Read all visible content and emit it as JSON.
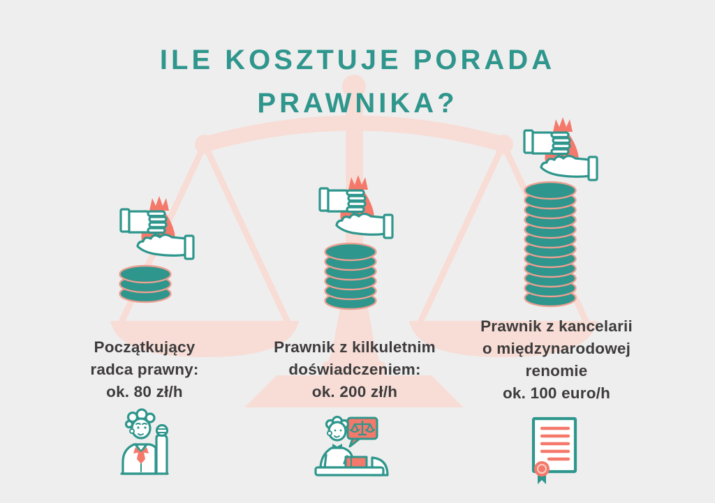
{
  "page": {
    "background": "#EFEEEE"
  },
  "title": {
    "line1": "ILE KOSZTUJE PORADA",
    "line2": "PRAWNIKA?"
  },
  "colors": {
    "teal": "#2E968C",
    "coral": "#F4796B",
    "pink": "#F7DDD6",
    "text": "#3D3B3C",
    "background": "#EFEEEE",
    "coin_edge": "#EBA092"
  },
  "watermark": {
    "name": "scales-of-justice-watermark"
  },
  "icons": {
    "money_dollar": "$",
    "top_icon": "money-exchange-icon",
    "stack_icon": "coin-stack-icon",
    "bottom_icons": [
      "junior-lawyer-icon",
      "lawyer-at-desk-icon",
      "certificate-diploma-icon"
    ]
  },
  "columns": [
    {
      "label_lines": [
        "Początkujący",
        "radca prawny:",
        "ok. 80 zł/h"
      ],
      "price": "ok. 80 zł/h",
      "coins": 3,
      "bottom_icon": "junior-lawyer-icon"
    },
    {
      "label_lines": [
        "Prawnik z kilkuletnim",
        "doświadczeniem:",
        "ok. 200 zł/h"
      ],
      "price": "ok. 200 zł/h",
      "coins": 6,
      "bottom_icon": "lawyer-at-desk-icon"
    },
    {
      "label_lines": [
        "Prawnik z kancelarii",
        "o międzynarodowej",
        "renomie",
        "ok. 100 euro/h"
      ],
      "price": "ok. 100 euro/h",
      "coins": 12,
      "bottom_icon": "certificate-diploma-icon"
    }
  ],
  "chart_data": {
    "type": "bar",
    "categories": [
      "Początkujący radca prawny",
      "Prawnik z kilkuletnim doświadczeniem",
      "Prawnik z kancelarii o międzynarodowej renomie"
    ],
    "values": [
      3,
      6,
      12
    ],
    "value_unit": "coins-in-stack",
    "prices": [
      "ok. 80 zł/h",
      "ok. 200 zł/h",
      "ok. 100 euro/h"
    ],
    "title": "ILE KOSZTUJE PORADA PRAWNIKA?"
  }
}
